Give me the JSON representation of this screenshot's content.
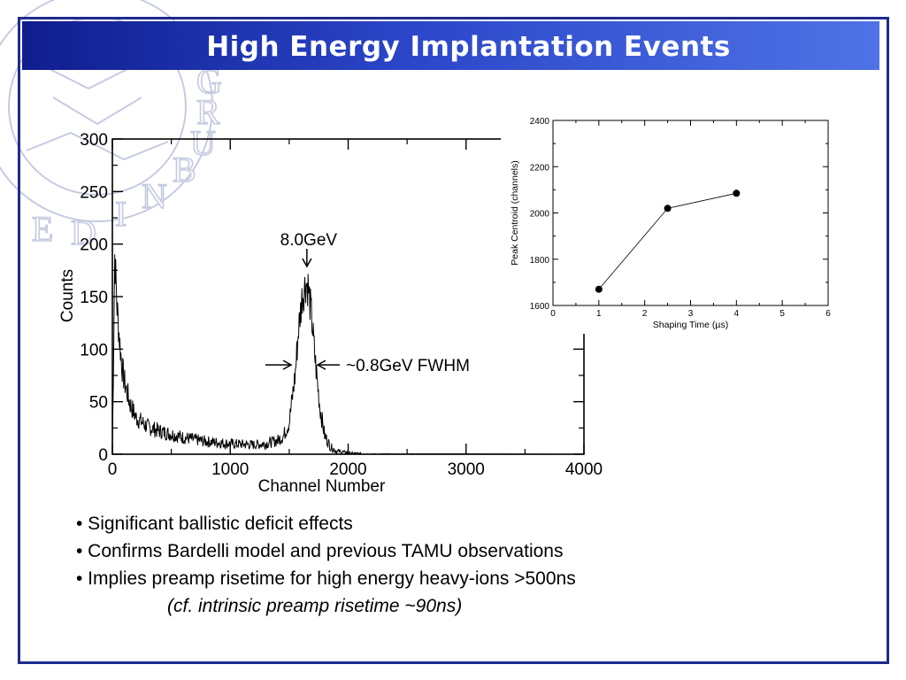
{
  "slide": {
    "title": "High Energy Implantation Events",
    "crest_text": "EDINBURGH",
    "bullets": [
      "• Significant ballistic deficit effects",
      "• Confirms Bardelli model and previous TAMU observations",
      "• Implies preamp risetime for high energy heavy-ions >500ns"
    ],
    "note": "(cf. intrinsic preamp risetime ~90ns)",
    "colors": {
      "title_bar": "#1f37b8",
      "frame": "#1f2b8f",
      "crest": "#c5cbe0",
      "trace": "#000000"
    }
  },
  "chart_data": [
    {
      "type": "line",
      "description_role": "energy spectrum histogram",
      "xlabel": "Channel Number",
      "ylabel": "Counts",
      "xlim": [
        0,
        4000
      ],
      "ylim": [
        0,
        300
      ],
      "xticks": [
        0,
        1000,
        2000,
        3000,
        4000
      ],
      "yticks": [
        0,
        50,
        100,
        150,
        200,
        250,
        300
      ],
      "grid": false,
      "series": [
        {
          "x": [
            0,
            20,
            40,
            60,
            80,
            100,
            150,
            200,
            300,
            400,
            500,
            600,
            800,
            1000,
            1200,
            1300,
            1400,
            1450,
            1500,
            1550,
            1580,
            1610,
            1640,
            1660,
            1690,
            1720,
            1760,
            1800,
            1850,
            1900,
            2000,
            2200,
            2500,
            3000,
            3500,
            4000
          ],
          "y": [
            0,
            190,
            140,
            110,
            85,
            70,
            48,
            35,
            26,
            22,
            19,
            16,
            12,
            10,
            9,
            10,
            13,
            17,
            30,
            75,
            120,
            150,
            163,
            160,
            130,
            90,
            45,
            18,
            7,
            3,
            1,
            0,
            0,
            0,
            0,
            0
          ]
        }
      ],
      "annotations": [
        {
          "text": "8.0GeV",
          "x": 1650,
          "y": 172
        },
        {
          "text": "~0.8GeV FWHM",
          "x": 1650,
          "y": 85
        }
      ]
    },
    {
      "type": "scatter",
      "description_role": "inset: peak centroid vs shaping time",
      "xlabel": "Shaping Time (µs)",
      "ylabel": "Peak Centroid (channels)",
      "xlim": [
        0,
        6
      ],
      "ylim": [
        1600,
        2400
      ],
      "xticks": [
        0,
        1,
        2,
        3,
        4,
        5,
        6
      ],
      "yticks": [
        1600,
        1800,
        2000,
        2200,
        2400
      ],
      "grid": false,
      "connected": true,
      "series": [
        {
          "x": [
            1,
            2.5,
            4
          ],
          "y": [
            1670,
            2020,
            2085
          ]
        }
      ]
    }
  ]
}
